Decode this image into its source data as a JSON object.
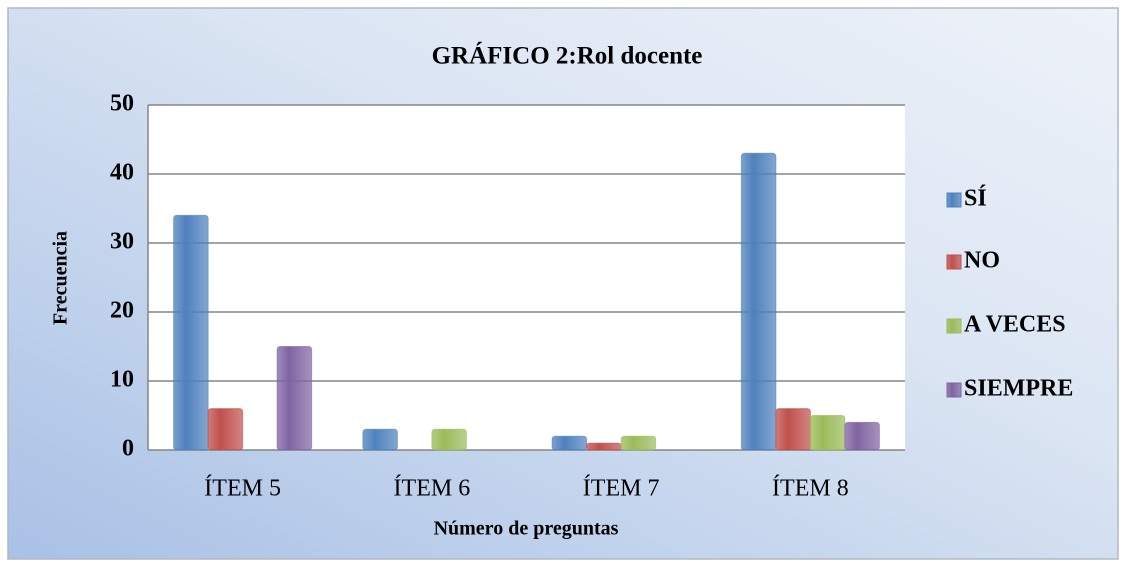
{
  "chart_data": {
    "type": "bar",
    "title": "GRÁFICO 2:Rol docente",
    "x_label": "Número  de preguntas",
    "y_label": "Frecuencia",
    "categories": [
      "ÍTEM 5",
      "ÍTEM 6",
      "ÍTEM 7",
      "ÍTEM 8"
    ],
    "series": [
      {
        "name": "SÍ",
        "color": "#4f81bd",
        "values": [
          34,
          3,
          2,
          43
        ]
      },
      {
        "name": "NO",
        "color": "#c0504d",
        "values": [
          6,
          0,
          1,
          6
        ]
      },
      {
        "name": "A VECES",
        "color": "#9bbb59",
        "values": [
          0,
          3,
          2,
          5
        ]
      },
      {
        "name": "SIEMPRE",
        "color": "#8064a2",
        "values": [
          15,
          0,
          0,
          4
        ]
      }
    ],
    "ylim": [
      0,
      50
    ],
    "yticks": [
      0,
      10,
      20,
      30,
      40,
      50
    ],
    "grid": true,
    "legend": "right"
  }
}
